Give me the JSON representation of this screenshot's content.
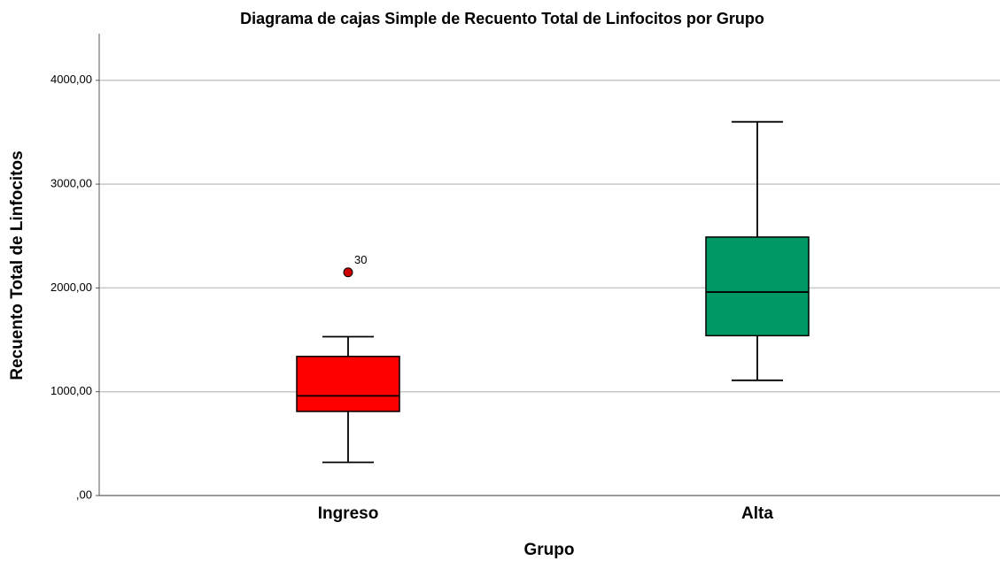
{
  "chart_data": {
    "type": "box",
    "title": "Diagrama de cajas Simple de Recuento Total de Linfocitos por Grupo",
    "x_label": "Grupo",
    "y_label": "Recuento Total de Linfocitos",
    "categories": [
      "Ingreso",
      "Alta"
    ],
    "boxes": [
      {
        "min": 320,
        "q1": 810,
        "median": 960,
        "q3": 1340,
        "max": 1530,
        "color": "#ff0000",
        "outliers": [
          2150
        ],
        "outlier_labels": [
          "30"
        ]
      },
      {
        "min": 1110,
        "q1": 1540,
        "median": 1960,
        "q3": 2490,
        "max": 3600,
        "color": "#009966",
        "outliers": [],
        "outlier_labels": []
      }
    ],
    "outlier_color": "#cc0000",
    "ylim": [
      0,
      4450
    ],
    "yticks": [
      {
        "value": 0,
        "label": ",00"
      },
      {
        "value": 1000,
        "label": "1000,00"
      },
      {
        "value": 2000,
        "label": "2000,00"
      },
      {
        "value": 3000,
        "label": "3000,00"
      },
      {
        "value": 4000,
        "label": "4000,00"
      }
    ],
    "grid": true
  }
}
